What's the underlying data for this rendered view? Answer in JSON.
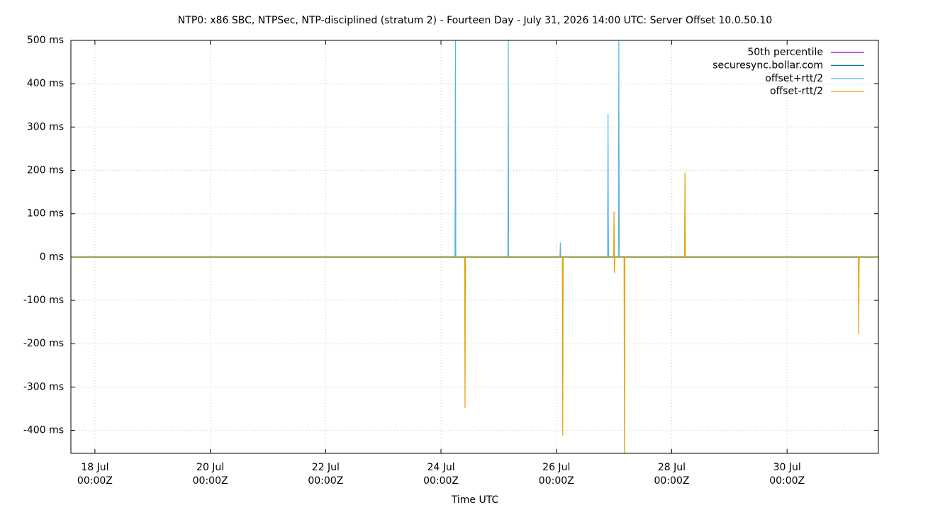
{
  "chart_data": {
    "type": "line",
    "title": "NTP0: x86 SBC, NTPSec, NTP-disciplined (stratum 2) - Fourteen Day - July 31, 2026 14:00 UTC: Server Offset 10.0.50.10",
    "xlabel": "Time UTC",
    "xlim": [
      "17 Jul 14:00Z",
      "31 Jul 14:00Z"
    ],
    "xticks": [
      {
        "value": "18 Jul 00:00Z",
        "label": "18 Jul\n00:00Z"
      },
      {
        "value": "20 Jul 00:00Z",
        "label": "20 Jul\n00:00Z"
      },
      {
        "value": "22 Jul 00:00Z",
        "label": "22 Jul\n00:00Z"
      },
      {
        "value": "24 Jul 00:00Z",
        "label": "24 Jul\n00:00Z"
      },
      {
        "value": "26 Jul 00:00Z",
        "label": "26 Jul\n00:00Z"
      },
      {
        "value": "28 Jul 00:00Z",
        "label": "28 Jul\n00:00Z"
      },
      {
        "value": "30 Jul 00:00Z",
        "label": "30 Jul\n00:00Z"
      }
    ],
    "ylim": [
      -453,
      500
    ],
    "yticks": [
      {
        "value": -400,
        "label": "-400 ms"
      },
      {
        "value": -300,
        "label": "-300 ms"
      },
      {
        "value": -200,
        "label": "-200 ms"
      },
      {
        "value": -100,
        "label": "-100 ms"
      },
      {
        "value": 0,
        "label": "0 ms"
      },
      {
        "value": 100,
        "label": "100 ms"
      },
      {
        "value": 200,
        "label": "200 ms"
      },
      {
        "value": 300,
        "label": "300 ms"
      },
      {
        "value": 400,
        "label": "400 ms"
      },
      {
        "value": 500,
        "label": "500 ms"
      }
    ],
    "grid": true,
    "legend": "top-right",
    "series": [
      {
        "name": "50th percentile",
        "color": "#9400d3",
        "x": [
          "17 Jul 14:00Z",
          "31 Jul 14:00Z"
        ],
        "values": [
          0,
          0
        ]
      },
      {
        "name": "securesync.bollar.com",
        "color": "#00808f",
        "x": [
          "17 Jul 14:00Z",
          "24 Jul 05:50Z",
          "24 Jul 06:00Z",
          "24 Jul 06:10Z",
          "26 Jul 21:20Z",
          "26 Jul 21:30Z",
          "26 Jul 21:40Z",
          "31 Jul 14:00Z"
        ],
        "values": [
          0,
          0,
          250,
          0,
          0,
          165,
          0,
          0
        ]
      },
      {
        "name": "offset+rtt/2",
        "color": "#56b4e9",
        "x": [
          "17 Jul 14:00Z",
          "24 Jul 05:50Z",
          "24 Jul 06:00Z",
          "24 Jul 06:10Z",
          "25 Jul 03:50Z",
          "25 Jul 04:00Z",
          "25 Jul 04:10Z",
          "26 Jul 01:30Z",
          "26 Jul 01:40Z",
          "26 Jul 01:50Z",
          "26 Jul 21:20Z",
          "26 Jul 21:30Z",
          "26 Jul 21:40Z",
          "27 Jul 01:50Z",
          "27 Jul 02:00Z",
          "27 Jul 02:10Z",
          "27 Jul 02:20Z",
          "31 Jul 14:00Z"
        ],
        "values": [
          1,
          1,
          500,
          1,
          1,
          500,
          1,
          1,
          33,
          1,
          1,
          330,
          1,
          1,
          500,
          35,
          1,
          1
        ]
      },
      {
        "name": "offset-rtt/2",
        "color": "#e69f00",
        "x": [
          "17 Jul 14:00Z",
          "24 Jul 09:50Z",
          "24 Jul 10:00Z",
          "24 Jul 10:10Z",
          "26 Jul 02:30Z",
          "26 Jul 02:40Z",
          "26 Jul 02:50Z",
          "26 Jul 23:50Z",
          "27 Jul 00:00Z",
          "27 Jul 00:10Z",
          "27 Jul 00:20Z",
          "27 Jul 04:10Z",
          "27 Jul 04:20Z",
          "27 Jul 04:30Z",
          "28 Jul 05:20Z",
          "28 Jul 05:30Z",
          "28 Jul 05:40Z",
          "31 Jul 05:40Z",
          "31 Jul 05:50Z",
          "31 Jul 06:00Z",
          "31 Jul 14:00Z"
        ],
        "values": [
          -1,
          -1,
          -348,
          -1,
          -1,
          -412,
          -1,
          -1,
          105,
          -37,
          -1,
          -1,
          -453,
          -1,
          -1,
          195,
          -1,
          -1,
          -178,
          -1,
          -1
        ]
      }
    ]
  }
}
